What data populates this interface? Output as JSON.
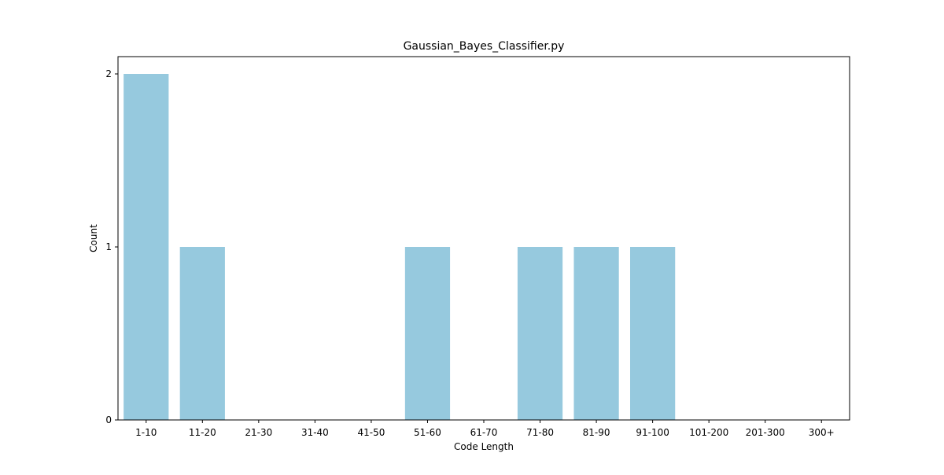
{
  "chart_data": {
    "type": "bar",
    "title": "Gaussian_Bayes_Classifier.py",
    "xlabel": "Code Length",
    "ylabel": "Count",
    "categories": [
      "1-10",
      "11-20",
      "21-30",
      "31-40",
      "41-50",
      "51-60",
      "61-70",
      "71-80",
      "81-90",
      "91-100",
      "101-200",
      "201-300",
      "300+"
    ],
    "values": [
      2,
      1,
      0,
      0,
      0,
      1,
      0,
      1,
      1,
      1,
      0,
      0,
      0
    ],
    "ylim": [
      0,
      2.1
    ],
    "yticks": [
      0,
      1,
      2
    ],
    "bar_color": "#96c9de",
    "grid": false,
    "legend": "none"
  }
}
